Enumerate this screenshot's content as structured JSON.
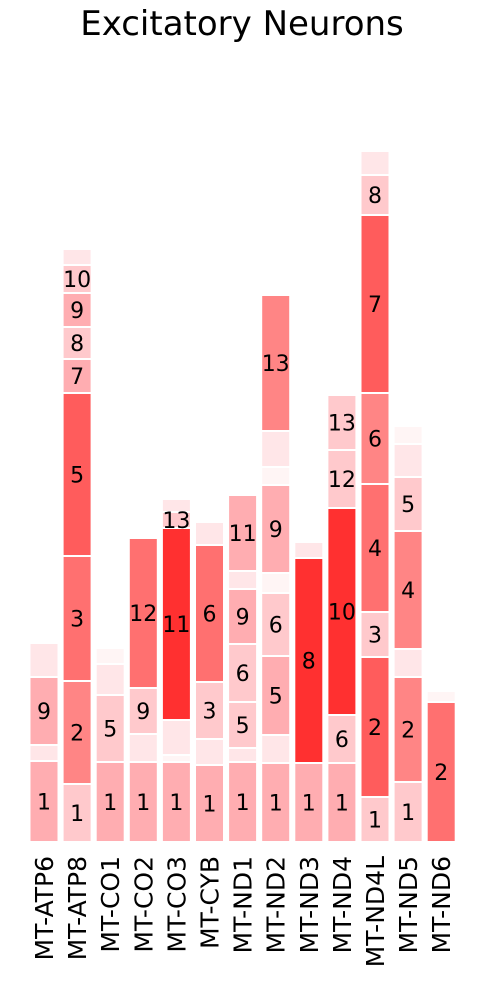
{
  "chart_data": {
    "type": "bar",
    "stacked": true,
    "title": "Excitatory Neurons",
    "xlabel": "",
    "ylabel": "",
    "grid": false,
    "palette": {
      "1": "#ffadb1",
      "2": "#ff8585",
      "3": "#ff7070",
      "4": "#ff5c5c",
      "5": "#ff4747",
      "6": "#ff3030",
      "7": "#ffc9cc",
      "8": "#ffe6e8",
      "9": "#fff5f5"
    },
    "categories": [
      "MT-ATP6",
      "MT-ATP8",
      "MT-CO1",
      "MT-CO2",
      "MT-CO3",
      "MT-CYB",
      "MT-ND1",
      "MT-ND2",
      "MT-ND3",
      "MT-ND4",
      "MT-ND4L",
      "MT-ND5",
      "MT-ND6"
    ],
    "bars": [
      {
        "category": "MT-ATP6",
        "segments": [
          {
            "label": "1",
            "value": 81,
            "shade": "1"
          },
          {
            "label": "",
            "value": 16,
            "shade": "8"
          },
          {
            "label": "9",
            "value": 68,
            "shade": "1"
          },
          {
            "label": "",
            "value": 34,
            "shade": "8"
          }
        ]
      },
      {
        "category": "MT-ATP8",
        "segments": [
          {
            "label": "1",
            "value": 58,
            "shade": "7"
          },
          {
            "label": "2",
            "value": 103,
            "shade": "2"
          },
          {
            "label": "3",
            "value": 125,
            "shade": "3"
          },
          {
            "label": "5",
            "value": 163,
            "shade": "4"
          },
          {
            "label": "7",
            "value": 34,
            "shade": "1"
          },
          {
            "label": "8",
            "value": 32,
            "shade": "7"
          },
          {
            "label": "9",
            "value": 34,
            "shade": "1"
          },
          {
            "label": "10",
            "value": 28,
            "shade": "7"
          },
          {
            "label": "",
            "value": 16,
            "shade": "8"
          }
        ]
      },
      {
        "category": "MT-CO1",
        "segments": [
          {
            "label": "1",
            "value": 80,
            "shade": "1"
          },
          {
            "label": "5",
            "value": 67,
            "shade": "7"
          },
          {
            "label": "",
            "value": 31,
            "shade": "8"
          },
          {
            "label": "",
            "value": 16,
            "shade": "9"
          }
        ]
      },
      {
        "category": "MT-CO2",
        "segments": [
          {
            "label": "1",
            "value": 80,
            "shade": "1"
          },
          {
            "label": "",
            "value": 28,
            "shade": "8"
          },
          {
            "label": "9",
            "value": 46,
            "shade": "7"
          },
          {
            "label": "12",
            "value": 150,
            "shade": "3"
          }
        ]
      },
      {
        "category": "MT-CO3",
        "segments": [
          {
            "label": "1",
            "value": 80,
            "shade": "1"
          },
          {
            "label": "",
            "value": 7,
            "shade": "9"
          },
          {
            "label": "",
            "value": 35,
            "shade": "8"
          },
          {
            "label": "11",
            "value": 192,
            "shade": "6"
          },
          {
            "label": "13",
            "value": 16,
            "shade": "7"
          },
          {
            "label": "",
            "value": 13,
            "shade": "8"
          }
        ]
      },
      {
        "category": "MT-CYB",
        "segments": [
          {
            "label": "1",
            "value": 77,
            "shade": "1"
          },
          {
            "label": "",
            "value": 26,
            "shade": "8"
          },
          {
            "label": "3",
            "value": 57,
            "shade": "7"
          },
          {
            "label": "6",
            "value": 137,
            "shade": "3"
          },
          {
            "label": "",
            "value": 23,
            "shade": "8"
          }
        ]
      },
      {
        "category": "MT-ND1",
        "segments": [
          {
            "label": "1",
            "value": 80,
            "shade": "1"
          },
          {
            "label": "",
            "value": 14,
            "shade": "8"
          },
          {
            "label": "5",
            "value": 46,
            "shade": "7"
          },
          {
            "label": "6",
            "value": 58,
            "shade": "7"
          },
          {
            "label": "9",
            "value": 55,
            "shade": "1"
          },
          {
            "label": "",
            "value": 18,
            "shade": "8"
          },
          {
            "label": "11",
            "value": 76,
            "shade": "1"
          }
        ]
      },
      {
        "category": "MT-ND2",
        "segments": [
          {
            "label": "1",
            "value": 79,
            "shade": "1"
          },
          {
            "label": "",
            "value": 28,
            "shade": "8"
          },
          {
            "label": "5",
            "value": 79,
            "shade": "1"
          },
          {
            "label": "6",
            "value": 63,
            "shade": "7"
          },
          {
            "label": "",
            "value": 20,
            "shade": "9"
          },
          {
            "label": "9",
            "value": 88,
            "shade": "1"
          },
          {
            "label": "",
            "value": 18,
            "shade": "9"
          },
          {
            "label": "",
            "value": 36,
            "shade": "8"
          },
          {
            "label": "13",
            "value": 136,
            "shade": "2"
          }
        ]
      },
      {
        "category": "MT-ND3",
        "segments": [
          {
            "label": "1",
            "value": 79,
            "shade": "1"
          },
          {
            "label": "8",
            "value": 205,
            "shade": "6"
          },
          {
            "label": "",
            "value": 16,
            "shade": "8"
          }
        ]
      },
      {
        "category": "MT-ND4",
        "segments": [
          {
            "label": "1",
            "value": 79,
            "shade": "1"
          },
          {
            "label": "6",
            "value": 48,
            "shade": "7"
          },
          {
            "label": "10",
            "value": 207,
            "shade": "6"
          },
          {
            "label": "12",
            "value": 58,
            "shade": "7"
          },
          {
            "label": "13",
            "value": 55,
            "shade": "7"
          }
        ]
      },
      {
        "category": "MT-ND4L",
        "segments": [
          {
            "label": "1",
            "value": 45,
            "shade": "7"
          },
          {
            "label": "2",
            "value": 140,
            "shade": "4"
          },
          {
            "label": "3",
            "value": 45,
            "shade": "7"
          },
          {
            "label": "4",
            "value": 128,
            "shade": "3"
          },
          {
            "label": "6",
            "value": 91,
            "shade": "2"
          },
          {
            "label": "7",
            "value": 178,
            "shade": "4"
          },
          {
            "label": "8",
            "value": 40,
            "shade": "7"
          },
          {
            "label": "",
            "value": 24,
            "shade": "8"
          }
        ]
      },
      {
        "category": "MT-ND5",
        "segments": [
          {
            "label": "1",
            "value": 60,
            "shade": "7"
          },
          {
            "label": "2",
            "value": 105,
            "shade": "2"
          },
          {
            "label": "",
            "value": 28,
            "shade": "8"
          },
          {
            "label": "4",
            "value": 118,
            "shade": "2"
          },
          {
            "label": "5",
            "value": 54,
            "shade": "7"
          },
          {
            "label": "",
            "value": 33,
            "shade": "8"
          },
          {
            "label": "",
            "value": 18,
            "shade": "9"
          }
        ]
      },
      {
        "category": "MT-ND6",
        "segments": [
          {
            "label": "2",
            "value": 140,
            "shade": "3"
          },
          {
            "label": "",
            "value": 11,
            "shade": "9"
          }
        ]
      }
    ]
  }
}
